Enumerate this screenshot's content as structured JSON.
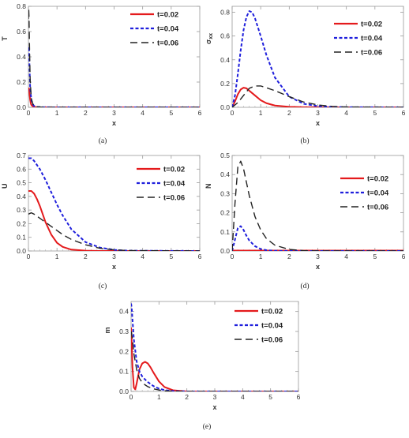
{
  "figure": {
    "series_names": [
      "t=0.02",
      "t=0.04",
      "t=0.06"
    ],
    "series_colors": [
      "#e41a1c",
      "#1f1fdc",
      "#222222"
    ]
  },
  "chart_data": [
    {
      "id": "a",
      "type": "line",
      "caption": "(a)",
      "xlabel": "x",
      "ylabel": "T",
      "xlim": [
        0,
        6
      ],
      "ylim": [
        0,
        0.8
      ],
      "xticks": [
        0,
        1,
        2,
        3,
        4,
        5,
        6
      ],
      "yticks": [
        0.0,
        0.2,
        0.4,
        0.6,
        0.8
      ],
      "ytick_labels": [
        "0.0",
        "0.2",
        "0.4",
        "0.6",
        "0.8"
      ],
      "series": [
        {
          "name": "t=0.02",
          "x": [
            0,
            0.01,
            0.02,
            0.04,
            0.06,
            0.08,
            0.1,
            0.15,
            0.2,
            0.3,
            0.5,
            1,
            6
          ],
          "y": [
            0.13,
            0.14,
            0.15,
            0.1,
            0.06,
            0.035,
            0.02,
            0.008,
            0.003,
            0.001,
            0,
            0,
            0
          ]
        },
        {
          "name": "t=0.04",
          "x": [
            0,
            0.01,
            0.02,
            0.04,
            0.06,
            0.1,
            0.15,
            0.2,
            0.3,
            0.5,
            1,
            6
          ],
          "y": [
            0.45,
            0.48,
            0.47,
            0.3,
            0.16,
            0.06,
            0.025,
            0.01,
            0.003,
            0.001,
            0,
            0
          ]
        },
        {
          "name": "t=0.06",
          "x": [
            0,
            0.01,
            0.02,
            0.04,
            0.06,
            0.1,
            0.15,
            0.2,
            0.3,
            0.5,
            1,
            6
          ],
          "y": [
            0.7,
            0.78,
            0.72,
            0.45,
            0.22,
            0.07,
            0.03,
            0.012,
            0.004,
            0.001,
            0,
            0
          ]
        }
      ]
    },
    {
      "id": "b",
      "type": "line",
      "caption": "(b)",
      "xlabel": "x",
      "ylabel": "σxx",
      "xlim": [
        0,
        6
      ],
      "ylim": [
        0,
        0.85
      ],
      "xticks": [
        0,
        1,
        2,
        3,
        4,
        5,
        6
      ],
      "yticks": [
        0.0,
        0.2,
        0.4,
        0.6,
        0.8
      ],
      "ytick_labels": [
        "0.0",
        "0.2",
        "0.4",
        "0.6",
        "0.8"
      ],
      "series": [
        {
          "name": "t=0.02",
          "x": [
            0,
            0.1,
            0.2,
            0.3,
            0.4,
            0.5,
            0.6,
            0.8,
            1.0,
            1.2,
            1.5,
            2.0,
            2.5,
            3.0,
            6
          ],
          "y": [
            0,
            0.05,
            0.11,
            0.15,
            0.165,
            0.16,
            0.14,
            0.1,
            0.06,
            0.035,
            0.015,
            0.004,
            0.001,
            0,
            0
          ]
        },
        {
          "name": "t=0.04",
          "x": [
            0,
            0.1,
            0.2,
            0.3,
            0.4,
            0.5,
            0.6,
            0.7,
            0.8,
            1.0,
            1.2,
            1.5,
            2.0,
            2.5,
            3.0,
            3.5,
            4.0,
            6
          ],
          "y": [
            0,
            0.1,
            0.28,
            0.48,
            0.65,
            0.76,
            0.81,
            0.8,
            0.75,
            0.6,
            0.44,
            0.25,
            0.09,
            0.03,
            0.01,
            0.003,
            0.001,
            0
          ]
        },
        {
          "name": "t=0.06",
          "x": [
            0,
            0.2,
            0.4,
            0.6,
            0.8,
            1.0,
            1.2,
            1.5,
            2.0,
            2.5,
            3.0,
            3.5,
            4.0,
            6
          ],
          "y": [
            0,
            0.04,
            0.1,
            0.16,
            0.18,
            0.18,
            0.165,
            0.14,
            0.09,
            0.045,
            0.02,
            0.008,
            0.003,
            0
          ]
        }
      ]
    },
    {
      "id": "c",
      "type": "line",
      "caption": "(c)",
      "xlabel": "x",
      "ylabel": "U",
      "xlim": [
        0,
        6
      ],
      "ylim": [
        0,
        0.7
      ],
      "xticks": [
        0,
        1,
        2,
        3,
        4,
        5,
        6
      ],
      "yticks": [
        0.0,
        0.1,
        0.2,
        0.3,
        0.4,
        0.5,
        0.6,
        0.7
      ],
      "ytick_labels": [
        "0.0",
        "0.1",
        "0.2",
        "0.3",
        "0.4",
        "0.5",
        "0.6",
        "0.7"
      ],
      "series": [
        {
          "name": "t=0.02",
          "x": [
            0,
            0.1,
            0.2,
            0.3,
            0.4,
            0.5,
            0.6,
            0.8,
            1.0,
            1.2,
            1.5,
            2.0,
            2.5,
            6
          ],
          "y": [
            0.44,
            0.44,
            0.42,
            0.38,
            0.33,
            0.27,
            0.21,
            0.12,
            0.06,
            0.03,
            0.01,
            0.002,
            0,
            0
          ]
        },
        {
          "name": "t=0.04",
          "x": [
            0,
            0.1,
            0.2,
            0.4,
            0.6,
            0.8,
            1.0,
            1.2,
            1.5,
            2.0,
            2.5,
            3.0,
            3.5,
            6
          ],
          "y": [
            0.68,
            0.68,
            0.66,
            0.6,
            0.52,
            0.43,
            0.34,
            0.26,
            0.16,
            0.065,
            0.025,
            0.008,
            0.002,
            0
          ]
        },
        {
          "name": "t=0.06",
          "x": [
            0,
            0.1,
            0.2,
            0.4,
            0.6,
            0.8,
            1.0,
            1.2,
            1.5,
            2.0,
            2.5,
            3.0,
            3.5,
            6
          ],
          "y": [
            0.27,
            0.28,
            0.27,
            0.24,
            0.21,
            0.18,
            0.15,
            0.12,
            0.085,
            0.045,
            0.02,
            0.008,
            0.003,
            0
          ]
        }
      ]
    },
    {
      "id": "d",
      "type": "line",
      "caption": "(d)",
      "xlabel": "x",
      "ylabel": "N",
      "xlim": [
        0,
        6
      ],
      "ylim": [
        0,
        0.5
      ],
      "xticks": [
        0,
        1,
        2,
        3,
        4,
        5,
        6
      ],
      "yticks": [
        0.0,
        0.1,
        0.2,
        0.3,
        0.4,
        0.5
      ],
      "ytick_labels": [
        "0.0",
        "0.1",
        "0.2",
        "0.3",
        "0.4",
        "0.5"
      ],
      "series": [
        {
          "name": "t=0.02",
          "x": [
            0,
            6
          ],
          "y": [
            0.002,
            0.002
          ]
        },
        {
          "name": "t=0.04",
          "x": [
            0,
            0.1,
            0.2,
            0.3,
            0.4,
            0.5,
            0.6,
            0.8,
            1.0,
            1.2,
            1.5,
            2.0,
            6
          ],
          "y": [
            0,
            0.06,
            0.12,
            0.13,
            0.11,
            0.08,
            0.055,
            0.025,
            0.01,
            0.004,
            0.001,
            0,
            0
          ]
        },
        {
          "name": "t=0.06",
          "x": [
            0,
            0.1,
            0.2,
            0.3,
            0.4,
            0.5,
            0.6,
            0.8,
            1.0,
            1.2,
            1.5,
            2.0,
            2.5,
            3.0,
            6
          ],
          "y": [
            0,
            0.25,
            0.44,
            0.47,
            0.43,
            0.36,
            0.29,
            0.18,
            0.11,
            0.065,
            0.03,
            0.008,
            0.002,
            0,
            0
          ]
        }
      ]
    },
    {
      "id": "e",
      "type": "line",
      "caption": "(e)",
      "xlabel": "x",
      "ylabel": "m",
      "xlim": [
        0,
        6
      ],
      "ylim": [
        0,
        0.45
      ],
      "xticks": [
        0,
        1,
        2,
        3,
        4,
        5,
        6
      ],
      "yticks": [
        0.0,
        0.1,
        0.2,
        0.3,
        0.4
      ],
      "ytick_labels": [
        "0.0",
        "0.1",
        "0.2",
        "0.3",
        "0.4"
      ],
      "series": [
        {
          "name": "t=0.02",
          "x": [
            0,
            0.02,
            0.05,
            0.1,
            0.15,
            0.2,
            0.3,
            0.4,
            0.5,
            0.6,
            0.7,
            0.8,
            1.0,
            1.2,
            1.5,
            2.0,
            6
          ],
          "y": [
            0.32,
            0.25,
            0.12,
            0.02,
            0.01,
            0.04,
            0.11,
            0.14,
            0.148,
            0.14,
            0.12,
            0.095,
            0.05,
            0.022,
            0.006,
            0,
            0
          ]
        },
        {
          "name": "t=0.04",
          "x": [
            0,
            0.02,
            0.05,
            0.1,
            0.2,
            0.3,
            0.4,
            0.5,
            0.6,
            0.8,
            1.0,
            1.2,
            1.5,
            2.0,
            6
          ],
          "y": [
            0.44,
            0.42,
            0.36,
            0.26,
            0.15,
            0.1,
            0.075,
            0.06,
            0.047,
            0.027,
            0.014,
            0.007,
            0.002,
            0,
            0
          ]
        },
        {
          "name": "t=0.06",
          "x": [
            0,
            0.02,
            0.05,
            0.1,
            0.2,
            0.3,
            0.4,
            0.5,
            0.6,
            0.8,
            1.0,
            1.2,
            1.5,
            2.0,
            6
          ],
          "y": [
            0.3,
            0.29,
            0.26,
            0.19,
            0.11,
            0.065,
            0.045,
            0.033,
            0.024,
            0.013,
            0.007,
            0.003,
            0.001,
            0,
            0
          ]
        }
      ]
    }
  ]
}
